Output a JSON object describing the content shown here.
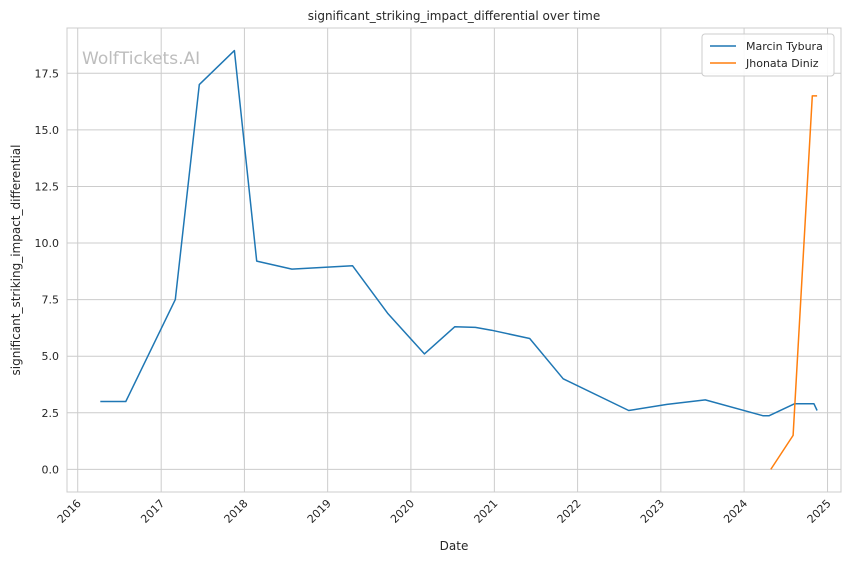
{
  "chart_data": {
    "type": "line",
    "title": "significant_striking_impact_differential over time",
    "xlabel": "Date",
    "ylabel": "significant_striking_impact_differential",
    "watermark": "WolfTickets.AI",
    "xlim": [
      "2015-11-15",
      "2025-03-01"
    ],
    "ylim": [
      -1.0,
      19.5
    ],
    "x_ticks": [
      "2016",
      "2017",
      "2018",
      "2019",
      "2020",
      "2021",
      "2022",
      "2023",
      "2024",
      "2025"
    ],
    "y_ticks": [
      "0.0",
      "2.5",
      "5.0",
      "7.5",
      "10.0",
      "12.5",
      "15.0",
      "17.5"
    ],
    "grid": true,
    "legend_position": "top-right",
    "series": [
      {
        "name": "Marcin Tybura",
        "color": "#1f77b4",
        "points": [
          {
            "x": "2016-04-09",
            "y": 3.0
          },
          {
            "x": "2016-07-30",
            "y": 3.0
          },
          {
            "x": "2017-03-04",
            "y": 7.5
          },
          {
            "x": "2017-06-17",
            "y": 17.0
          },
          {
            "x": "2017-11-18",
            "y": 18.5
          },
          {
            "x": "2018-02-24",
            "y": 9.2
          },
          {
            "x": "2018-07-28",
            "y": 8.85
          },
          {
            "x": "2019-04-20",
            "y": 9.0
          },
          {
            "x": "2019-09-21",
            "y": 6.9
          },
          {
            "x": "2020-02-29",
            "y": 5.1
          },
          {
            "x": "2020-07-11",
            "y": 6.3
          },
          {
            "x": "2020-10-10",
            "y": 6.27
          },
          {
            "x": "2020-12-19",
            "y": 6.15
          },
          {
            "x": "2021-06-05",
            "y": 5.78
          },
          {
            "x": "2021-10-30",
            "y": 4.0
          },
          {
            "x": "2022-08-13",
            "y": 2.6
          },
          {
            "x": "2023-01-28",
            "y": 2.87
          },
          {
            "x": "2023-07-15",
            "y": 3.07
          },
          {
            "x": "2024-03-23",
            "y": 2.37
          },
          {
            "x": "2024-04-20",
            "y": 2.37
          },
          {
            "x": "2024-08-10",
            "y": 2.9
          },
          {
            "x": "2024-11-02",
            "y": 2.9
          },
          {
            "x": "2024-11-16",
            "y": 2.6
          }
        ]
      },
      {
        "name": "Jhonata Diniz",
        "color": "#ff7f0e",
        "points": [
          {
            "x": "2024-04-27",
            "y": 0.0
          },
          {
            "x": "2024-08-03",
            "y": 1.5
          },
          {
            "x": "2024-10-26",
            "y": 16.5
          },
          {
            "x": "2024-11-16",
            "y": 16.5
          }
        ]
      }
    ]
  }
}
